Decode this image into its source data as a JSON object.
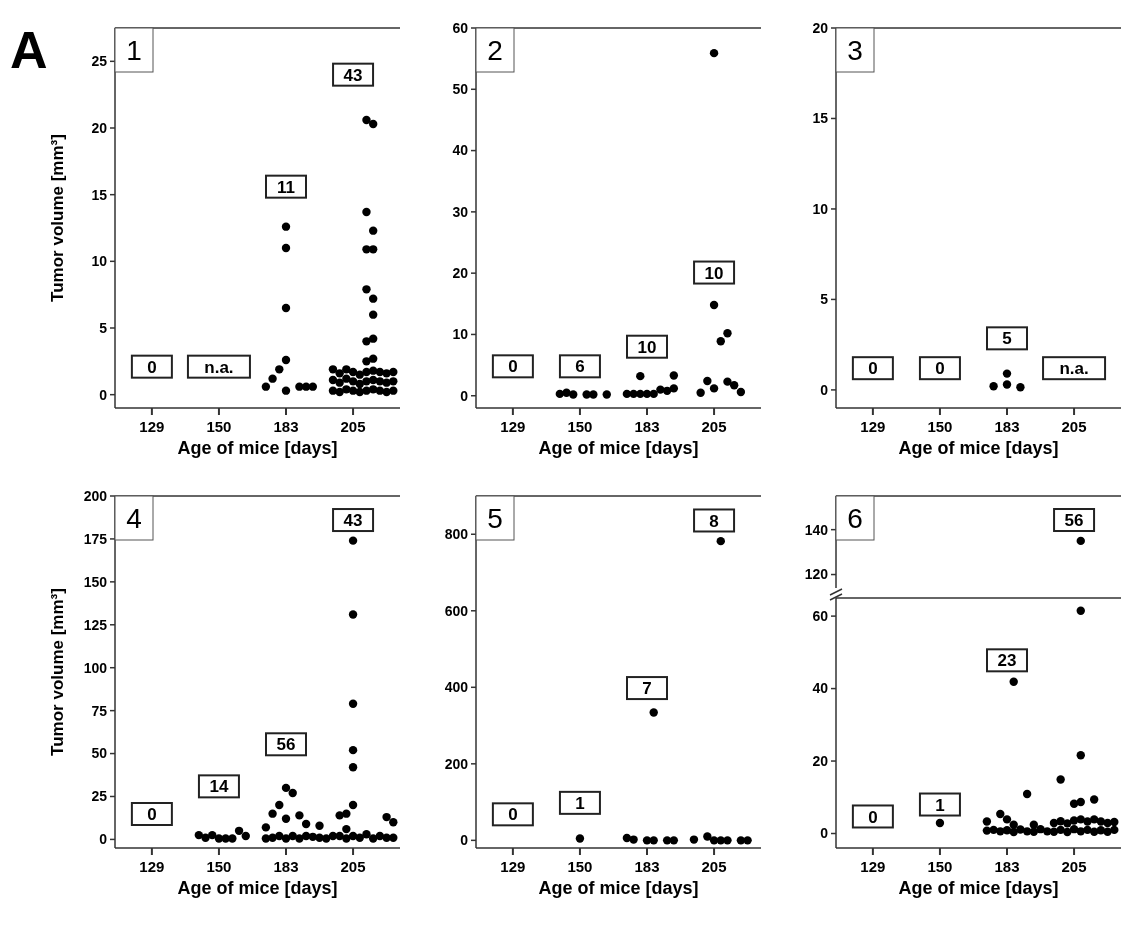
{
  "chart_data": [
    {
      "type": "scatter",
      "title": "1",
      "xlabel": "Age of mice [days]",
      "ylabel": "Tumor volume [mm³]",
      "categories": [
        null,
        null,
        null,
        "129",
        null,
        null,
        null,
        null,
        null,
        null,
        null,
        null,
        null,
        "150",
        null,
        null,
        null,
        null,
        null,
        null,
        null,
        null,
        null,
        "183",
        null,
        null,
        null,
        null,
        null,
        null,
        null,
        null,
        null,
        "205",
        null,
        null,
        null,
        null,
        null,
        null
      ],
      "ylim": [
        -1,
        27.5
      ],
      "yticks": [
        0,
        5,
        10,
        15,
        20,
        25
      ],
      "marker": "circle",
      "series": [
        {
          "color": "#000000",
          "values": [
            null,
            null,
            null,
            null,
            null,
            null,
            null,
            null,
            null,
            null,
            null,
            null,
            null,
            null,
            null,
            null,
            null,
            null,
            null,
            null,
            0.6,
            1.2,
            1.9,
            0.3,
            null,
            0.6,
            0.6,
            0.6,
            null,
            null,
            0.3,
            0.2,
            0.4,
            0.3,
            0.2,
            0.3,
            0.4,
            0.3,
            0.2,
            0.3
          ]
        },
        {
          "color": "#000000",
          "values": [
            null,
            null,
            null,
            null,
            null,
            null,
            null,
            null,
            null,
            null,
            null,
            null,
            null,
            null,
            null,
            null,
            null,
            null,
            null,
            null,
            null,
            null,
            null,
            2.6,
            null,
            null,
            null,
            null,
            null,
            null,
            1.1,
            0.9,
            1.2,
            1.0,
            0.8,
            1.0,
            1.1,
            1.0,
            0.9,
            1.0
          ]
        },
        {
          "color": "#000000",
          "values": [
            null,
            null,
            null,
            null,
            null,
            null,
            null,
            null,
            null,
            null,
            null,
            null,
            null,
            null,
            null,
            null,
            null,
            null,
            null,
            null,
            null,
            null,
            null,
            6.5,
            null,
            null,
            null,
            null,
            null,
            null,
            1.9,
            1.6,
            1.9,
            1.7,
            1.5,
            1.7,
            1.8,
            1.7,
            1.6,
            1.7
          ]
        },
        {
          "color": "#000000",
          "values": [
            null,
            null,
            null,
            null,
            null,
            null,
            null,
            null,
            null,
            null,
            null,
            null,
            null,
            null,
            null,
            null,
            null,
            null,
            null,
            null,
            null,
            null,
            null,
            11.0,
            null,
            null,
            null,
            null,
            null,
            null,
            null,
            null,
            null,
            null,
            null,
            2.5,
            2.7,
            null,
            null,
            null
          ]
        },
        {
          "color": "#000000",
          "values": [
            null,
            null,
            null,
            null,
            null,
            null,
            null,
            null,
            null,
            null,
            null,
            null,
            null,
            null,
            null,
            null,
            null,
            null,
            null,
            null,
            null,
            null,
            null,
            12.6,
            null,
            null,
            null,
            null,
            null,
            null,
            null,
            null,
            null,
            null,
            null,
            4.0,
            4.2,
            null,
            null,
            null
          ]
        },
        {
          "color": "#000000",
          "values": [
            null,
            null,
            null,
            null,
            null,
            null,
            null,
            null,
            null,
            null,
            null,
            null,
            null,
            null,
            null,
            null,
            null,
            null,
            null,
            null,
            null,
            null,
            null,
            null,
            null,
            null,
            null,
            null,
            null,
            null,
            null,
            null,
            null,
            null,
            null,
            7.9,
            6.0,
            null,
            null,
            null
          ]
        },
        {
          "color": "#000000",
          "values": [
            null,
            null,
            null,
            null,
            null,
            null,
            null,
            null,
            null,
            null,
            null,
            null,
            null,
            null,
            null,
            null,
            null,
            null,
            null,
            null,
            null,
            null,
            null,
            null,
            null,
            null,
            null,
            null,
            null,
            null,
            null,
            null,
            null,
            null,
            null,
            10.9,
            7.2,
            null,
            null,
            null
          ]
        },
        {
          "color": "#000000",
          "values": [
            null,
            null,
            null,
            null,
            null,
            null,
            null,
            null,
            null,
            null,
            null,
            null,
            null,
            null,
            null,
            null,
            null,
            null,
            null,
            null,
            null,
            null,
            null,
            null,
            null,
            null,
            null,
            null,
            null,
            null,
            null,
            null,
            null,
            null,
            null,
            13.7,
            10.9,
            null,
            null,
            null
          ]
        },
        {
          "color": "#000000",
          "values": [
            null,
            null,
            null,
            null,
            null,
            null,
            null,
            null,
            null,
            null,
            null,
            null,
            null,
            null,
            null,
            null,
            null,
            null,
            null,
            null,
            null,
            null,
            null,
            null,
            null,
            null,
            null,
            null,
            null,
            null,
            null,
            null,
            null,
            null,
            null,
            20.6,
            12.3,
            null,
            null,
            null
          ]
        },
        {
          "color": "#000000",
          "values": [
            null,
            null,
            null,
            null,
            null,
            null,
            null,
            null,
            null,
            null,
            null,
            null,
            null,
            null,
            null,
            null,
            null,
            null,
            null,
            null,
            null,
            null,
            null,
            null,
            null,
            null,
            null,
            null,
            null,
            null,
            null,
            null,
            null,
            null,
            null,
            null,
            20.3,
            null,
            null,
            null
          ]
        }
      ],
      "annotations": [
        "n.a.",
        "A",
        {
          "text": "0",
          "x": "129",
          "y": 2.1
        },
        {
          "text": "11",
          "x": "183",
          "y": 15.6
        },
        {
          "text": "43",
          "x": "205",
          "y": 24
        }
      ]
    },
    {
      "type": "scatter",
      "title": "2",
      "xlabel": "Age of mice [days]",
      "categories": [
        null,
        null,
        null,
        "129",
        null,
        null,
        null,
        null,
        null,
        null,
        null,
        null,
        null,
        "150",
        null,
        null,
        null,
        null,
        null,
        null,
        null,
        null,
        null,
        "183",
        null,
        null,
        null,
        null,
        null,
        null,
        null,
        null,
        null,
        "205",
        null,
        null,
        null,
        null,
        null,
        null
      ],
      "ylim": [
        -2,
        60
      ],
      "yticks": [
        0,
        10,
        20,
        30,
        40,
        50,
        60
      ],
      "marker": "circle",
      "series": [
        {
          "color": "#000000",
          "values": [
            null,
            null,
            null,
            null,
            null,
            null,
            null,
            null,
            null,
            null,
            0.3,
            0.5,
            0.2,
            null,
            0.2,
            0.2,
            null,
            0.2,
            null,
            null,
            0.3,
            0.3,
            0.3,
            0.3,
            0.3,
            1.0,
            0.8,
            1.2,
            null,
            null,
            null,
            0.5,
            2.4,
            1.2,
            8.9,
            2.3,
            1.7,
            0.6,
            null,
            null
          ]
        },
        {
          "color": "#000000",
          "values": [
            null,
            null,
            null,
            null,
            null,
            null,
            null,
            null,
            null,
            null,
            null,
            null,
            null,
            null,
            null,
            null,
            null,
            null,
            null,
            null,
            null,
            null,
            3.2,
            null,
            null,
            null,
            null,
            3.3,
            null,
            null,
            null,
            null,
            null,
            14.8,
            null,
            10.2,
            null,
            null,
            null,
            null
          ]
        },
        {
          "color": "#000000",
          "values": [
            null,
            null,
            null,
            null,
            null,
            null,
            null,
            null,
            null,
            null,
            null,
            null,
            null,
            null,
            null,
            null,
            null,
            null,
            null,
            null,
            null,
            null,
            null,
            null,
            null,
            null,
            null,
            null,
            null,
            null,
            null,
            null,
            null,
            55.9,
            null,
            null,
            null,
            null,
            null,
            null
          ]
        }
      ],
      "annotations": [
        {
          "text": "0",
          "x": "129",
          "y": 4.8
        },
        {
          "text": "6",
          "x": "150",
          "y": 4.8
        },
        {
          "text": "10",
          "x": "183",
          "y": 8.0
        },
        {
          "text": "10",
          "x": "205",
          "y": 20.1
        }
      ]
    },
    {
      "type": "scatter",
      "title": "3",
      "xlabel": "Age of mice [days]",
      "categories": [
        null,
        null,
        null,
        "129",
        null,
        null,
        null,
        null,
        null,
        null,
        null,
        null,
        null,
        "150",
        null,
        null,
        null,
        null,
        null,
        null,
        null,
        null,
        null,
        "183",
        null,
        null,
        null,
        null,
        null,
        null,
        null,
        null,
        null,
        "205",
        null,
        null,
        null,
        null,
        null,
        null
      ],
      "ylim": [
        -1,
        20
      ],
      "yticks": [
        0,
        5,
        10,
        15,
        20
      ],
      "marker": "circle",
      "series": [
        {
          "color": "#000000",
          "values": [
            null,
            null,
            null,
            null,
            null,
            null,
            null,
            null,
            null,
            null,
            null,
            null,
            null,
            null,
            null,
            null,
            null,
            null,
            null,
            null,
            null,
            0.2,
            null,
            0.3,
            null,
            0.15,
            null,
            null,
            null,
            null,
            null,
            null,
            null,
            null,
            null,
            null,
            null,
            null,
            null,
            null
          ]
        },
        {
          "color": "#000000",
          "values": [
            null,
            null,
            null,
            null,
            null,
            null,
            null,
            null,
            null,
            null,
            null,
            null,
            null,
            null,
            null,
            null,
            null,
            null,
            null,
            null,
            null,
            null,
            null,
            0.9,
            null,
            null,
            null,
            null,
            null,
            null,
            null,
            null,
            null,
            null,
            null,
            null,
            null,
            null,
            null,
            null
          ]
        }
      ],
      "annotations": [
        "n.a.",
        {
          "text": "0",
          "x": "129",
          "y": 1.2
        },
        {
          "text": "0",
          "x": "150",
          "y": 1.2
        },
        {
          "text": "5",
          "x": "183",
          "y": 2.85
        }
      ]
    },
    {
      "type": "scatter",
      "title": "4",
      "xlabel": "Age of mice [days]",
      "ylabel": "Tumor volume [mm³]",
      "categories": [
        null,
        null,
        null,
        "129",
        null,
        null,
        null,
        null,
        null,
        null,
        null,
        null,
        null,
        "150",
        null,
        null,
        null,
        null,
        null,
        null,
        null,
        null,
        null,
        "183",
        null,
        null,
        null,
        null,
        null,
        null,
        null,
        null,
        null,
        "205",
        null,
        null,
        null,
        null,
        null,
        null
      ],
      "ylim": [
        -5,
        200
      ],
      "yticks": [
        0,
        25,
        50,
        75,
        100,
        125,
        150,
        175,
        200
      ],
      "marker": "circle",
      "series": [
        {
          "color": "#000000",
          "values": [
            null,
            null,
            null,
            null,
            null,
            null,
            null,
            null,
            null,
            null,
            2.5,
            1,
            2.5,
            0.5,
            0.5,
            0.5,
            5,
            2,
            null,
            null,
            0.5,
            1,
            2,
            0.5,
            2,
            0.5,
            2,
            1.5,
            1,
            0.5,
            2,
            2,
            0.5,
            2,
            1,
            3,
            0.5,
            2,
            1,
            1
          ]
        },
        {
          "color": "#000000",
          "values": [
            null,
            null,
            null,
            null,
            null,
            null,
            null,
            null,
            null,
            null,
            null,
            null,
            null,
            null,
            null,
            null,
            null,
            null,
            null,
            null,
            7,
            15,
            20,
            12,
            27,
            14,
            9,
            null,
            8,
            null,
            null,
            14,
            6,
            20,
            null,
            null,
            null,
            null,
            13,
            10
          ]
        },
        {
          "color": "#000000",
          "values": [
            null,
            null,
            null,
            null,
            null,
            null,
            null,
            null,
            null,
            null,
            null,
            null,
            null,
            null,
            null,
            null,
            null,
            null,
            null,
            null,
            null,
            null,
            null,
            30,
            null,
            null,
            null,
            null,
            null,
            null,
            null,
            null,
            15,
            42,
            null,
            null,
            null,
            null,
            null,
            null
          ]
        },
        {
          "color": "#000000",
          "values": [
            null,
            null,
            null,
            null,
            null,
            null,
            null,
            null,
            null,
            null,
            null,
            null,
            null,
            null,
            null,
            null,
            null,
            null,
            null,
            null,
            null,
            null,
            null,
            null,
            null,
            null,
            null,
            null,
            null,
            null,
            null,
            null,
            null,
            52,
            null,
            null,
            null,
            null,
            null,
            null
          ]
        },
        {
          "color": "#000000",
          "values": [
            null,
            null,
            null,
            null,
            null,
            null,
            null,
            null,
            null,
            null,
            null,
            null,
            null,
            null,
            null,
            null,
            null,
            null,
            null,
            null,
            null,
            null,
            null,
            null,
            null,
            null,
            null,
            null,
            null,
            null,
            null,
            null,
            null,
            79,
            null,
            null,
            null,
            null,
            null,
            null
          ]
        },
        {
          "color": "#000000",
          "values": [
            null,
            null,
            null,
            null,
            null,
            null,
            null,
            null,
            null,
            null,
            null,
            null,
            null,
            null,
            null,
            null,
            null,
            null,
            null,
            null,
            null,
            null,
            null,
            null,
            null,
            null,
            null,
            null,
            null,
            null,
            null,
            null,
            null,
            131,
            null,
            null,
            null,
            null,
            null,
            null
          ]
        },
        {
          "color": "#000000",
          "values": [
            null,
            null,
            null,
            null,
            null,
            null,
            null,
            null,
            null,
            null,
            null,
            null,
            null,
            null,
            null,
            null,
            null,
            null,
            null,
            null,
            null,
            null,
            null,
            null,
            null,
            null,
            null,
            null,
            null,
            null,
            null,
            null,
            null,
            174,
            null,
            null,
            null,
            null,
            null,
            null
          ]
        }
      ],
      "annotations": [
        {
          "text": "0",
          "x": "129",
          "y": 14.8
        },
        {
          "text": "14",
          "x": "150",
          "y": 30.9
        },
        {
          "text": "56",
          "x": "183",
          "y": 55.4
        },
        {
          "text": "43",
          "x": "205",
          "y": 186
        }
      ]
    },
    {
      "type": "scatter",
      "title": "5",
      "xlabel": "Age of mice [days]",
      "categories": [
        null,
        null,
        null,
        "129",
        null,
        null,
        null,
        null,
        null,
        null,
        null,
        null,
        null,
        "150",
        null,
        null,
        null,
        null,
        null,
        null,
        null,
        null,
        null,
        "183",
        null,
        null,
        null,
        null,
        null,
        null,
        null,
        null,
        null,
        "205",
        null,
        null,
        null,
        null,
        null,
        null
      ],
      "ylim": [
        -20,
        900
      ],
      "yticks": [
        0,
        200,
        400,
        600,
        800
      ],
      "marker": "circle",
      "series": [
        {
          "color": "#000000",
          "values": [
            null,
            null,
            null,
            null,
            null,
            null,
            null,
            null,
            null,
            null,
            null,
            null,
            null,
            5,
            null,
            null,
            null,
            null,
            null,
            null,
            6,
            2,
            null,
            0,
            0,
            null,
            0,
            0,
            null,
            null,
            2,
            null,
            10,
            0,
            0,
            0,
            null,
            0,
            0,
            null
          ]
        },
        {
          "color": "#000000",
          "values": [
            null,
            null,
            null,
            null,
            null,
            null,
            null,
            null,
            null,
            null,
            null,
            null,
            null,
            null,
            null,
            null,
            null,
            null,
            null,
            null,
            null,
            null,
            null,
            null,
            334,
            null,
            null,
            null,
            null,
            null,
            null,
            null,
            null,
            null,
            782,
            null,
            null,
            null,
            null,
            null
          ]
        }
      ],
      "annotations": [
        {
          "text": "0",
          "x": "129",
          "y": 68
        },
        {
          "text": "1",
          "x": "150",
          "y": 98
        },
        {
          "text": "7",
          "x": "183",
          "y": 398
        },
        {
          "text": "8",
          "x": "205",
          "y": 836
        }
      ]
    },
    {
      "type": "scatter",
      "title": "6",
      "tick_labels": "y",
      "categories": [
        null,
        null,
        null,
        "129",
        null,
        null,
        null,
        null,
        null,
        null,
        null,
        null,
        null,
        "150",
        null,
        null,
        null,
        null,
        null,
        null,
        null,
        null,
        null,
        "183",
        null,
        null,
        null,
        null,
        null,
        null,
        null,
        null,
        null,
        "205",
        null,
        null,
        null,
        null,
        null,
        null
      ],
      "ylim": [
        114,
        155
      ],
      "yticks": [
        120,
        140
      ],
      "marker": "circle",
      "series": [
        {
          "color": "#000000",
          "values": [
            null,
            null,
            null,
            null,
            null,
            null,
            null,
            null,
            null,
            null,
            null,
            null,
            null,
            null,
            null,
            null,
            null,
            null,
            null,
            null,
            null,
            null,
            null,
            null,
            null,
            null,
            null,
            null,
            null,
            null,
            null,
            null,
            null,
            null,
            135,
            null,
            null,
            null,
            null,
            null
          ]
        }
      ],
      "annotations": [
        {
          "text": "56",
          "x": "205",
          "y": 144.3
        }
      ]
    },
    {
      "type": "scatter",
      "xlabel": "Age of mice [days]",
      "categories": [
        null,
        null,
        null,
        "129",
        null,
        null,
        null,
        null,
        null,
        null,
        null,
        null,
        null,
        "150",
        null,
        null,
        null,
        null,
        null,
        null,
        null,
        null,
        null,
        "183",
        null,
        null,
        null,
        null,
        null,
        null,
        null,
        null,
        null,
        "205",
        null,
        null,
        null,
        null,
        null,
        null
      ],
      "ylim": [
        -4,
        65
      ],
      "yticks": [
        0,
        20,
        40,
        60
      ],
      "marker": "circle",
      "series": [
        {
          "color": "#000000",
          "values": [
            null,
            null,
            null,
            null,
            null,
            null,
            null,
            null,
            null,
            null,
            null,
            null,
            null,
            2.9,
            null,
            null,
            null,
            null,
            null,
            null,
            0.8,
            1.0,
            0.6,
            0.9,
            0.4,
            1.1,
            0.6,
            0.5,
            1.2,
            0.6,
            0.5,
            1.0,
            0.4,
            1.2,
            0.6,
            1.0,
            0.5,
            0.9,
            0.5,
            1.0
          ]
        },
        {
          "color": "#000000",
          "values": [
            null,
            null,
            null,
            null,
            null,
            null,
            null,
            null,
            null,
            null,
            null,
            null,
            null,
            null,
            null,
            null,
            null,
            null,
            null,
            null,
            3.3,
            null,
            5.4,
            3.9,
            2.4,
            null,
            10.9,
            2.4,
            null,
            null,
            2.9,
            3.4,
            2.8,
            3.6,
            3.9,
            3.3,
            3.9,
            3.3,
            2.9,
            3.2
          ]
        },
        {
          "color": "#000000",
          "values": [
            null,
            null,
            null,
            null,
            null,
            null,
            null,
            null,
            null,
            null,
            null,
            null,
            null,
            null,
            null,
            null,
            null,
            null,
            null,
            null,
            null,
            null,
            null,
            null,
            41.9,
            null,
            null,
            null,
            null,
            null,
            null,
            14.9,
            null,
            8.2,
            8.7,
            null,
            9.4,
            null,
            null,
            null
          ]
        },
        {
          "color": "#000000",
          "values": [
            null,
            null,
            null,
            null,
            null,
            null,
            null,
            null,
            null,
            null,
            null,
            null,
            null,
            null,
            null,
            null,
            null,
            null,
            null,
            null,
            null,
            null,
            null,
            null,
            null,
            null,
            null,
            null,
            null,
            null,
            null,
            null,
            null,
            null,
            21.6,
            null,
            null,
            null,
            null,
            null
          ]
        },
        {
          "color": "#000000",
          "values": [
            null,
            null,
            null,
            null,
            null,
            null,
            null,
            null,
            null,
            null,
            null,
            null,
            null,
            null,
            null,
            null,
            null,
            null,
            null,
            null,
            null,
            null,
            null,
            null,
            null,
            null,
            null,
            null,
            null,
            null,
            null,
            null,
            null,
            null,
            61.5,
            null,
            null,
            null,
            null,
            null
          ]
        }
      ],
      "annotations": [
        {
          "text": "0",
          "x": "129",
          "y": 4.7
        },
        {
          "text": "1",
          "x": "150",
          "y": 8.0
        },
        {
          "text": "23",
          "x": "183",
          "y": 47.8
        }
      ]
    }
  ]
}
